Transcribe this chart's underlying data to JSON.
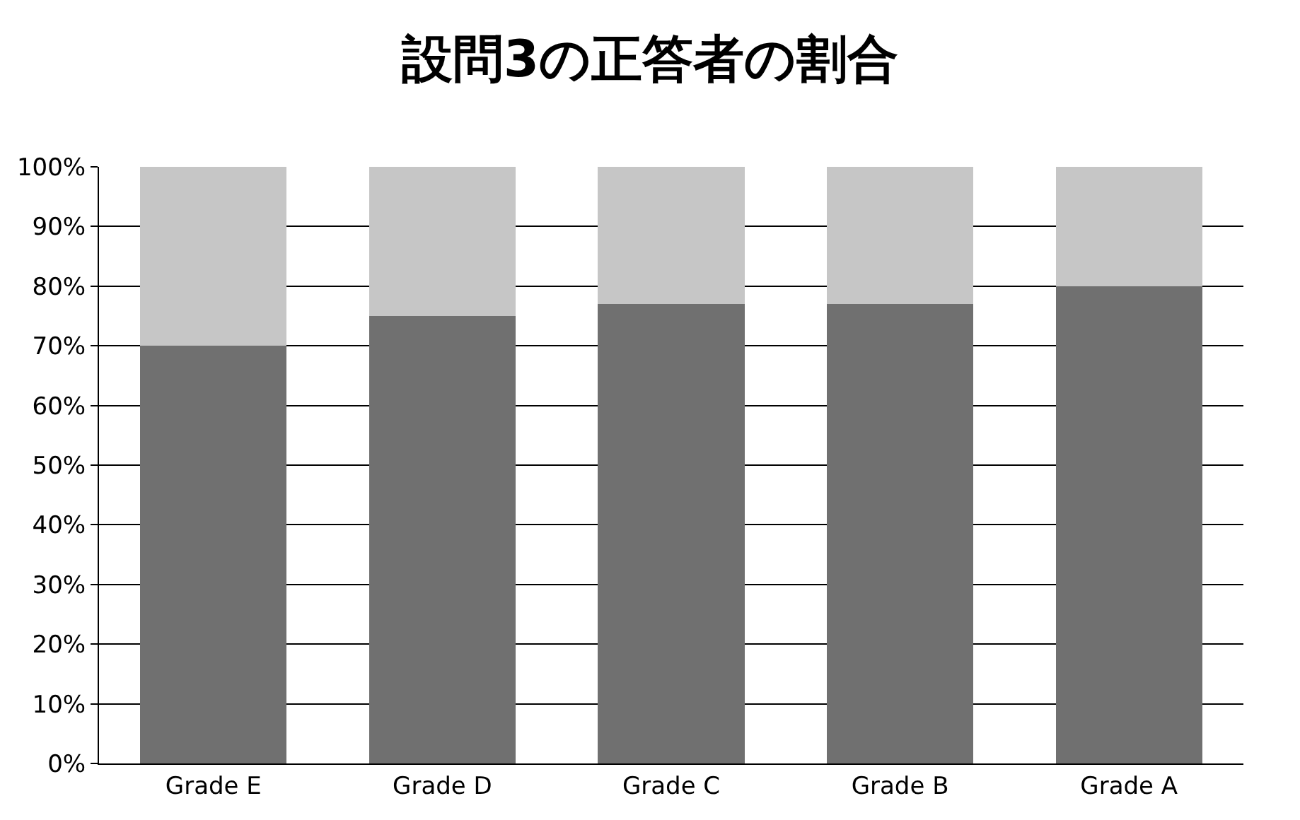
{
  "chart_data": {
    "type": "bar",
    "title": "設問3の正答者の割合",
    "categories": [
      "Grade E",
      "Grade D",
      "Grade C",
      "Grade B",
      "Grade A"
    ],
    "stacked": true,
    "series": [
      {
        "color": "#707070",
        "values": [
          70,
          75,
          77,
          77,
          80
        ]
      },
      {
        "color": "#c6c6c6",
        "values": [
          30,
          25,
          23,
          23,
          20
        ]
      }
    ],
    "ylim": [
      0,
      100
    ],
    "yticks": [
      {
        "value": 0,
        "label": "0%"
      },
      {
        "value": 10,
        "label": "10%"
      },
      {
        "value": 20,
        "label": "20%"
      },
      {
        "value": 30,
        "label": "30%"
      },
      {
        "value": 40,
        "label": "40%"
      },
      {
        "value": 50,
        "label": "50%"
      },
      {
        "value": 60,
        "label": "60%"
      },
      {
        "value": 70,
        "label": "70%"
      },
      {
        "value": 80,
        "label": "80%"
      },
      {
        "value": 90,
        "label": "90%"
      },
      {
        "value": 100,
        "label": "100%"
      }
    ],
    "grid": "y"
  }
}
